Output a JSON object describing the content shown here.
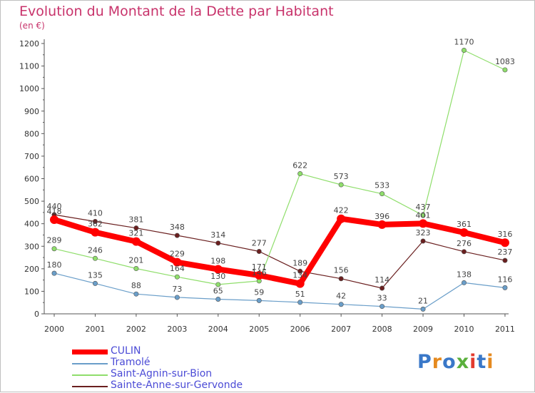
{
  "title": "Evolution du Montant de la Dette par Habitant",
  "unit": "(en €)",
  "logo": "Proxiti",
  "chart_data": {
    "type": "line",
    "title": "Evolution du Montant de la Dette par Habitant",
    "ylabel": "(en €)",
    "ylim": [
      0,
      1200
    ],
    "yticks": [
      0,
      100,
      200,
      300,
      400,
      500,
      600,
      700,
      800,
      900,
      1000,
      1100,
      1200
    ],
    "x": [
      "2000",
      "2001",
      "2002",
      "2003",
      "2004",
      "2005",
      "2006",
      "2007",
      "2008",
      "2009",
      "2010",
      "2011"
    ],
    "grid": false,
    "legend": "bottom-left",
    "series": [
      {
        "name": "CULIN",
        "color": "#ff0000",
        "values": [
          418,
          362,
          321,
          229,
          198,
          171,
          134,
          422,
          396,
          401,
          361,
          316
        ]
      },
      {
        "name": "Tramolé",
        "color": "#6a9ec9",
        "values": [
          180,
          135,
          88,
          73,
          65,
          59,
          51,
          42,
          33,
          21,
          138,
          116
        ]
      },
      {
        "name": "Saint-Agnin-sur-Bion",
        "color": "#8fde6b",
        "values": [
          289,
          246,
          201,
          164,
          130,
          146,
          622,
          573,
          533,
          437,
          1170,
          1083
        ]
      },
      {
        "name": "Sainte-Anne-sur-Gervonde",
        "color": "#6a1f1f",
        "values": [
          440,
          410,
          381,
          348,
          314,
          277,
          189,
          156,
          114,
          323,
          276,
          237
        ]
      }
    ]
  }
}
